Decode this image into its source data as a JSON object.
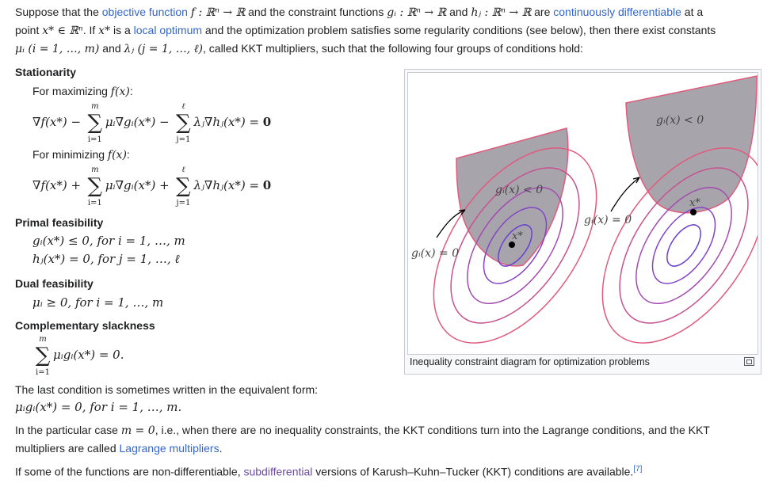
{
  "intro": {
    "t1": "Suppose that the ",
    "link_objective": "objective function",
    "t2": " and the constraint functions ",
    "t3": " and ",
    "t4": " are ",
    "link_cont": "continuously differentiable",
    "t5": " at a",
    "t6": "point ",
    "t7": ". If ",
    "t8": " is a ",
    "link_local": "local optimum",
    "t9": " and the optimization problem satisfies some regularity conditions (see below), then there exist constants",
    "t10": " and ",
    "t11": ", called KKT multipliers, such that the following four groups of conditions hold:",
    "m_f": "f : ℝⁿ → ℝ",
    "m_g": "gᵢ : ℝⁿ → ℝ",
    "m_h": "hⱼ : ℝⁿ → ℝ",
    "m_x": "x* ∈ ℝⁿ",
    "m_xs": "x*",
    "m_mu": "μᵢ (i = 1, …, m)",
    "m_lambda": "λⱼ (j = 1, …, ℓ)"
  },
  "stationarity": {
    "heading": "Stationarity",
    "max_label": "For maximizing ",
    "max_fx": "f(x)",
    "min_label": "For minimizing ",
    "min_fx": "f(x)",
    "eq_max_a": "∇f(x*) −",
    "eq_max_b": "μᵢ∇gᵢ(x*) −",
    "eq_max_c": "λⱼ∇hⱼ(x*) = ",
    "eq_min_a": "∇f(x*) +",
    "eq_min_b": "μᵢ∇gᵢ(x*) +",
    "eq_min_c": "λⱼ∇hⱼ(x*) = ",
    "zero": "0",
    "sum_m": "m",
    "sum_l": "ℓ",
    "sum_i": "i=1",
    "sum_j": "j=1"
  },
  "primal": {
    "heading": "Primal feasibility",
    "line1": "gᵢ(x*) ≤ 0,  for i = 1, …, m",
    "line2": "hⱼ(x*) = 0,  for j = 1, …, ℓ"
  },
  "dual": {
    "heading": "Dual feasibility",
    "line1": "μᵢ ≥ 0,  for i = 1, …, m"
  },
  "comp": {
    "heading": "Complementary slackness",
    "eq": "μᵢgᵢ(x*) = 0.",
    "sum_m": "m",
    "sum_i": "i=1"
  },
  "equiv": {
    "text": "The last condition is sometimes written in the equivalent form:",
    "eq": "μᵢgᵢ(x*) = 0,  for i = 1, …, m."
  },
  "particular": {
    "t1": "In the particular case ",
    "m_eq": "m = 0",
    "t2": ", i.e., when there are no inequality constraints, the KKT conditions turn into the Lagrange conditions, and the KKT",
    "t3": "multipliers are called ",
    "link_lagrange": "Lagrange multipliers",
    "t4": "."
  },
  "nondiff": {
    "t1": "If some of the functions are non-differentiable, ",
    "link_sub": "subdifferential",
    "t2": " versions of Karush–Kuhn–Tucker (KKT) conditions are available.",
    "ref": "[7]"
  },
  "figure": {
    "caption": "Inequality constraint diagram for optimization problems",
    "label_left_inside": "gᵢ(x) < 0",
    "label_left_boundary": "gᵢ(x) = 0",
    "label_right_inside": "gᵢ(x) < 0",
    "label_right_boundary": "gᵢ(x) = 0",
    "label_xstar_left": "x*",
    "label_xstar_right": "x*",
    "colors": {
      "region": "#a7a5ab",
      "outer": "#e05a7d",
      "inner": "#6a3fd2"
    }
  }
}
